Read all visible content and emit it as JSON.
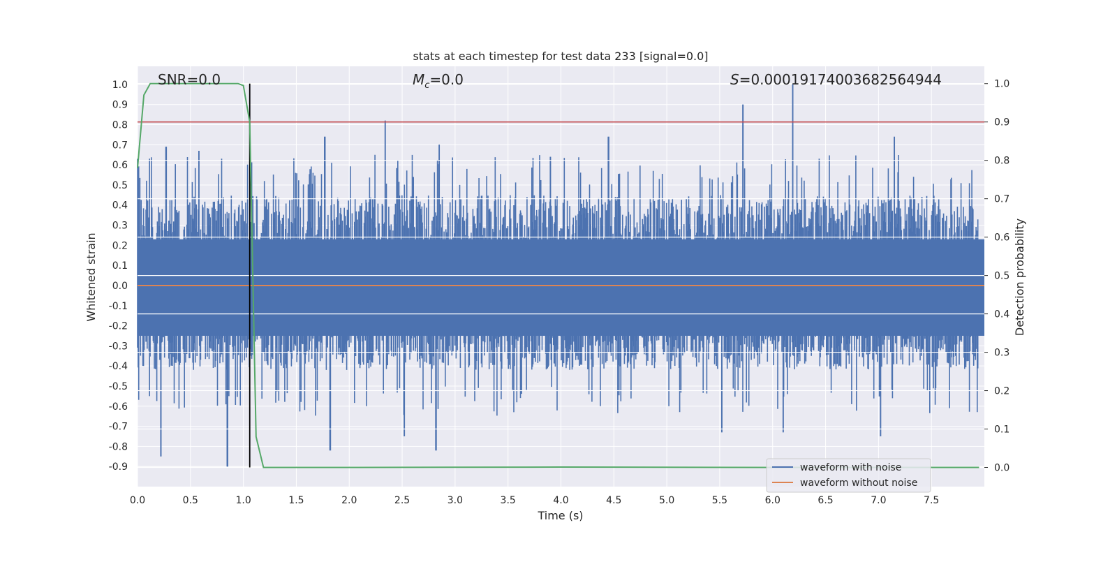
{
  "chart_data": {
    "type": "line",
    "title": "stats at each timestep for test data 233 [signal=0.0]",
    "xlabel": "Time (s)",
    "ylabel": "Whitened strain",
    "y2label": "Detection probability",
    "xlim": [
      0.0,
      8.0
    ],
    "ylim": [
      -1.0,
      1.09
    ],
    "y2lim": [
      -0.05,
      1.045
    ],
    "x_ticks": [
      "0.0",
      "0.5",
      "1.0",
      "1.5",
      "2.0",
      "2.5",
      "3.0",
      "3.5",
      "4.0",
      "4.5",
      "5.0",
      "5.5",
      "6.0",
      "6.5",
      "7.0",
      "7.5"
    ],
    "y_ticks": [
      "-0.9",
      "-0.8",
      "-0.7",
      "-0.6",
      "-0.5",
      "-0.4",
      "-0.3",
      "-0.2",
      "-0.1",
      "0.0",
      "0.1",
      "0.2",
      "0.3",
      "0.4",
      "0.5",
      "0.6",
      "0.7",
      "0.8",
      "0.9",
      "1.0"
    ],
    "y2_ticks": [
      "0.0",
      "0.1",
      "0.2",
      "0.3",
      "0.4",
      "0.5",
      "0.6",
      "0.7",
      "0.8",
      "0.9",
      "1.0"
    ],
    "grid": true,
    "annotations": {
      "snr": "SNR=0.0",
      "mc_symbol": "M",
      "mc_subscript": "c",
      "mc_value": "=0.0",
      "s_symbol": "S",
      "s_value": "=0.00019174003682564944"
    },
    "threshold_prob": 0.9,
    "marker_time": 1.06,
    "noise_envelope": {
      "upper_typical": 0.45,
      "lower_typical": -0.42,
      "upper_spikes": [
        [
          0.27,
          0.69
        ],
        [
          0.58,
          0.67
        ],
        [
          1.77,
          0.74
        ],
        [
          2.34,
          0.82
        ],
        [
          2.85,
          0.7
        ],
        [
          3.9,
          0.64
        ],
        [
          4.45,
          0.74
        ],
        [
          5.72,
          0.9
        ],
        [
          6.19,
          1.0
        ],
        [
          7.15,
          0.74
        ]
      ],
      "lower_spikes": [
        [
          0.22,
          -0.85
        ],
        [
          0.85,
          -0.9
        ],
        [
          1.82,
          -0.82
        ],
        [
          2.52,
          -0.75
        ],
        [
          2.82,
          -0.82
        ],
        [
          5.52,
          -0.73
        ],
        [
          6.1,
          -0.73
        ],
        [
          7.02,
          -0.75
        ]
      ]
    },
    "series": [
      {
        "name": "waveform with noise",
        "color": "#4c72b0",
        "description_values": "random noise amplitude"
      },
      {
        "name": "waveform without noise",
        "color": "#dd8452",
        "values_constant": 0.0
      },
      {
        "color": "#55a868",
        "x": [
          0.0,
          0.06,
          0.12,
          0.3,
          0.6,
          0.95,
          1.0,
          1.06,
          1.12,
          1.19,
          1.25,
          2.0,
          4.0,
          6.0,
          7.95
        ],
        "y": [
          0.78,
          0.97,
          1.0,
          1.0,
          1.0,
          1.0,
          0.995,
          0.9,
          0.08,
          0.0,
          0.0,
          0.0,
          0.001,
          0.0,
          0.0
        ]
      }
    ],
    "colors": {
      "background": "#eaeaf2",
      "grid": "#ffffff",
      "noise": "#4c72b0",
      "clean": "#dd8452",
      "prob": "#55a868",
      "threshold": "#c44e52",
      "marker": "#000000"
    },
    "legend": {
      "placement": "bottom-right",
      "entries": [
        "waveform with noise",
        "waveform without noise"
      ]
    }
  }
}
